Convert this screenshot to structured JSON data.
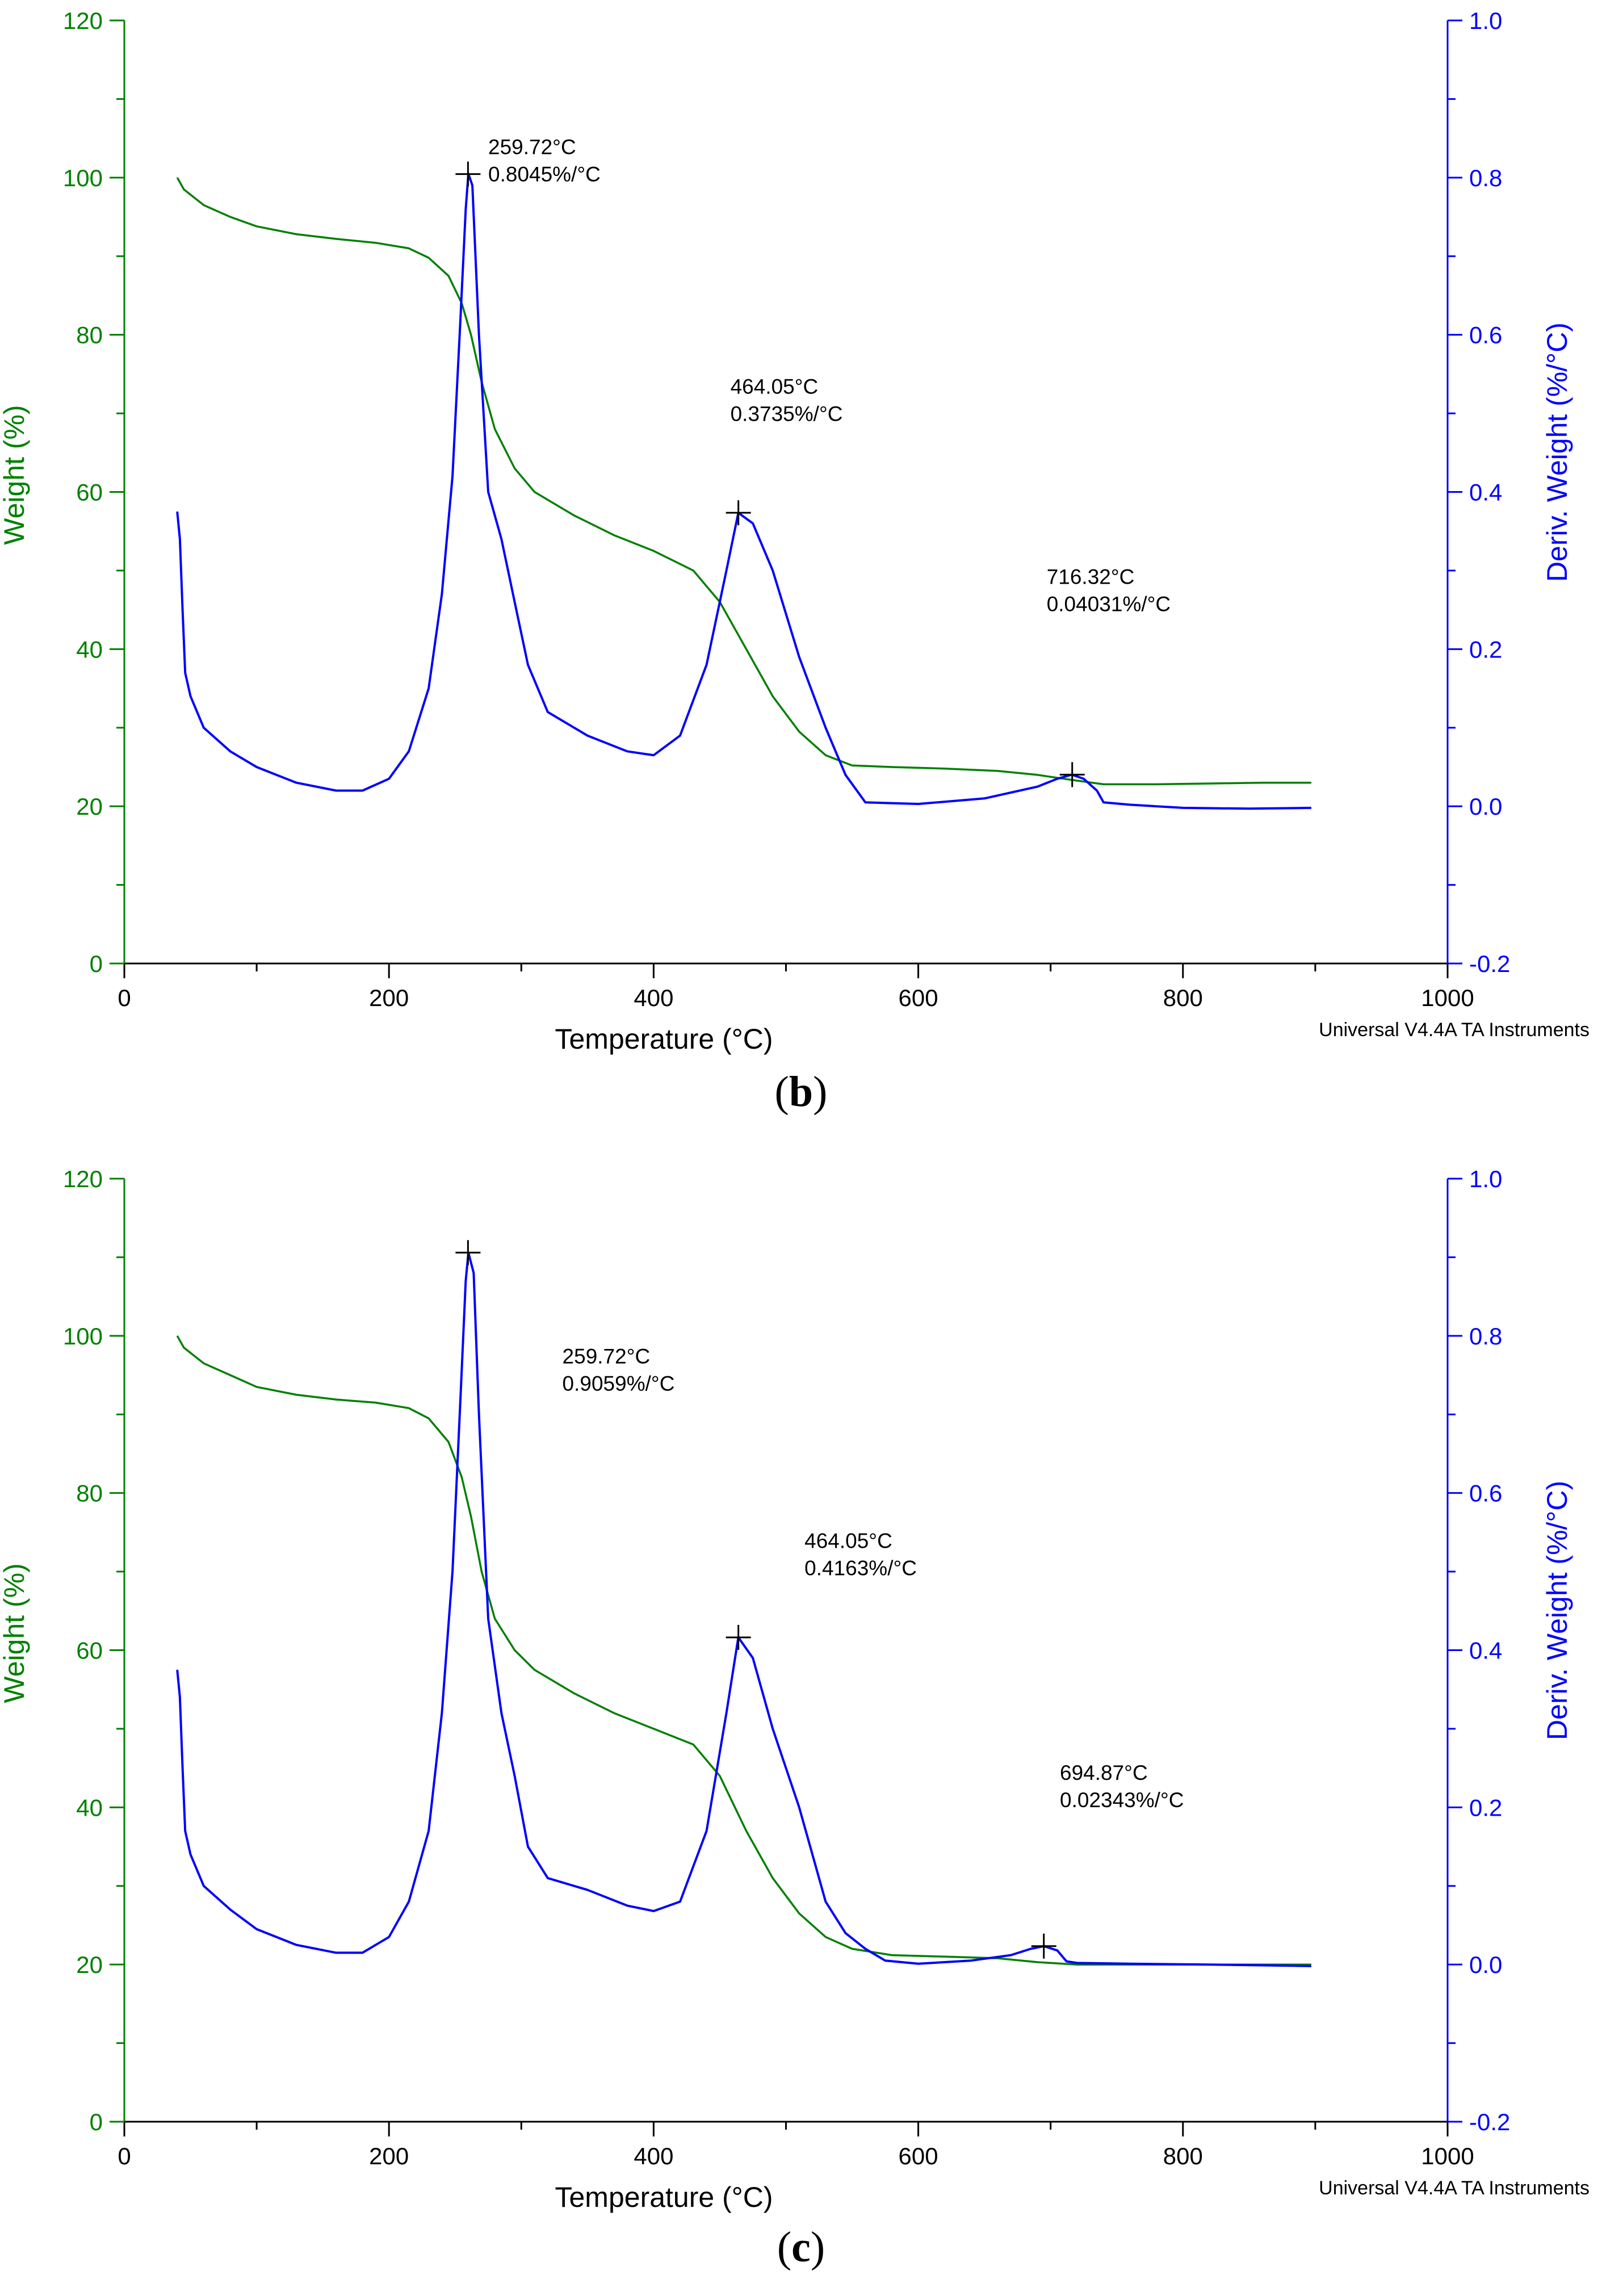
{
  "colors": {
    "weight": "#008000",
    "deriv": "#0000ff",
    "axis_text": "#000000"
  },
  "chart_data": [
    {
      "type": "line",
      "caption": "b",
      "xlabel": "Temperature (°C)",
      "ylabel": "Weight (%)",
      "y2label": "Deriv. Weight (%/°C)",
      "footer": "Universal V4.4A TA Instruments",
      "xlim": [
        0,
        1000
      ],
      "ylim": [
        0,
        120
      ],
      "y2lim": [
        -0.2,
        1.0
      ],
      "xticks": [
        "0",
        "200",
        "400",
        "600",
        "800",
        "1000"
      ],
      "yticks": [
        "0",
        "20",
        "40",
        "60",
        "80",
        "100",
        "120"
      ],
      "y2ticks": [
        "-0.2",
        "0.0",
        "0.2",
        "0.4",
        "0.6",
        "0.8",
        "1.0"
      ],
      "series": [
        {
          "axis": "left",
          "points": [
            [
              40,
              100
            ],
            [
              45,
              98.5
            ],
            [
              60,
              96.5
            ],
            [
              80,
              95
            ],
            [
              100,
              93.8
            ],
            [
              130,
              92.8
            ],
            [
              160,
              92.2
            ],
            [
              190,
              91.7
            ],
            [
              215,
              91
            ],
            [
              230,
              89.8
            ],
            [
              245,
              87.5
            ],
            [
              255,
              84
            ],
            [
              262,
              80
            ],
            [
              270,
              74
            ],
            [
              280,
              68
            ],
            [
              295,
              63
            ],
            [
              310,
              60
            ],
            [
              340,
              57
            ],
            [
              370,
              54.5
            ],
            [
              400,
              52.5
            ],
            [
              430,
              50
            ],
            [
              450,
              46
            ],
            [
              470,
              40
            ],
            [
              490,
              34
            ],
            [
              510,
              29.5
            ],
            [
              530,
              26.5
            ],
            [
              550,
              25.2
            ],
            [
              580,
              25
            ],
            [
              620,
              24.8
            ],
            [
              660,
              24.5
            ],
            [
              690,
              24
            ],
            [
              710,
              23.5
            ],
            [
              740,
              22.8
            ],
            [
              780,
              22.8
            ],
            [
              820,
              22.9
            ],
            [
              860,
              23
            ],
            [
              897,
              23
            ]
          ]
        },
        {
          "axis": "right",
          "points": [
            [
              40,
              0.375
            ],
            [
              42,
              0.34
            ],
            [
              44,
              0.25
            ],
            [
              46,
              0.17
            ],
            [
              50,
              0.14
            ],
            [
              60,
              0.1
            ],
            [
              80,
              0.07
            ],
            [
              100,
              0.05
            ],
            [
              130,
              0.03
            ],
            [
              160,
              0.02
            ],
            [
              180,
              0.02
            ],
            [
              200,
              0.035
            ],
            [
              215,
              0.07
            ],
            [
              230,
              0.15
            ],
            [
              240,
              0.27
            ],
            [
              248,
              0.42
            ],
            [
              254,
              0.62
            ],
            [
              258,
              0.76
            ],
            [
              260,
              0.805
            ],
            [
              263,
              0.79
            ],
            [
              268,
              0.6
            ],
            [
              275,
              0.4
            ],
            [
              285,
              0.34
            ],
            [
              295,
              0.26
            ],
            [
              305,
              0.18
            ],
            [
              320,
              0.12
            ],
            [
              350,
              0.09
            ],
            [
              380,
              0.07
            ],
            [
              400,
              0.065
            ],
            [
              420,
              0.09
            ],
            [
              440,
              0.18
            ],
            [
              455,
              0.3
            ],
            [
              464,
              0.3735
            ],
            [
              475,
              0.36
            ],
            [
              490,
              0.3
            ],
            [
              510,
              0.19
            ],
            [
              530,
              0.1
            ],
            [
              545,
              0.04
            ],
            [
              560,
              0.005
            ],
            [
              600,
              0.003
            ],
            [
              650,
              0.01
            ],
            [
              690,
              0.025
            ],
            [
              705,
              0.035
            ],
            [
              716,
              0.0403
            ],
            [
              725,
              0.035
            ],
            [
              735,
              0.02
            ],
            [
              740,
              0.005
            ],
            [
              760,
              0.002
            ],
            [
              800,
              -0.002
            ],
            [
              850,
              -0.003
            ],
            [
              897,
              -0.002
            ]
          ]
        }
      ],
      "annotations": [
        {
          "x": 259.72,
          "y2": 0.8045,
          "label1": "259.72°C",
          "label2": "0.8045%/°C",
          "tx": 275,
          "ty2": 0.83
        },
        {
          "x": 464.05,
          "y2": 0.3735,
          "label1": "464.05°C",
          "label2": "0.3735%/°C",
          "tx": 458,
          "ty2": 0.525
        },
        {
          "x": 716.32,
          "y2": 0.0403,
          "label1": "716.32°C",
          "label2": "0.04031%/°C",
          "tx": 697,
          "ty2": 0.283
        }
      ]
    },
    {
      "type": "line",
      "caption": "c",
      "xlabel": "Temperature (°C)",
      "ylabel": "Weight (%)",
      "y2label": "Deriv. Weight (%/°C)",
      "footer": "Universal V4.4A TA Instruments",
      "xlim": [
        0,
        1000
      ],
      "ylim": [
        0,
        120
      ],
      "y2lim": [
        -0.2,
        1.0
      ],
      "xticks": [
        "0",
        "200",
        "400",
        "600",
        "800",
        "1000"
      ],
      "yticks": [
        "0",
        "20",
        "40",
        "60",
        "80",
        "100",
        "120"
      ],
      "y2ticks": [
        "-0.2",
        "0.0",
        "0.2",
        "0.4",
        "0.6",
        "0.8",
        "1.0"
      ],
      "series": [
        {
          "axis": "left",
          "points": [
            [
              40,
              100
            ],
            [
              45,
              98.5
            ],
            [
              60,
              96.5
            ],
            [
              80,
              95
            ],
            [
              100,
              93.5
            ],
            [
              130,
              92.5
            ],
            [
              160,
              91.9
            ],
            [
              190,
              91.5
            ],
            [
              215,
              90.8
            ],
            [
              230,
              89.5
            ],
            [
              245,
              86.5
            ],
            [
              255,
              82
            ],
            [
              262,
              77
            ],
            [
              270,
              70
            ],
            [
              280,
              64
            ],
            [
              295,
              60
            ],
            [
              310,
              57.5
            ],
            [
              340,
              54.5
            ],
            [
              370,
              52
            ],
            [
              400,
              50
            ],
            [
              430,
              48
            ],
            [
              450,
              44
            ],
            [
              470,
              37
            ],
            [
              490,
              31
            ],
            [
              510,
              26.5
            ],
            [
              530,
              23.5
            ],
            [
              550,
              22
            ],
            [
              580,
              21.2
            ],
            [
              620,
              21
            ],
            [
              660,
              20.8
            ],
            [
              690,
              20.3
            ],
            [
              720,
              20
            ],
            [
              760,
              20
            ],
            [
              820,
              20
            ],
            [
              897,
              20
            ]
          ]
        },
        {
          "axis": "right",
          "points": [
            [
              40,
              0.375
            ],
            [
              42,
              0.34
            ],
            [
              44,
              0.25
            ],
            [
              46,
              0.17
            ],
            [
              50,
              0.14
            ],
            [
              60,
              0.1
            ],
            [
              80,
              0.07
            ],
            [
              100,
              0.045
            ],
            [
              130,
              0.025
            ],
            [
              160,
              0.015
            ],
            [
              180,
              0.015
            ],
            [
              200,
              0.035
            ],
            [
              215,
              0.08
            ],
            [
              230,
              0.17
            ],
            [
              240,
              0.32
            ],
            [
              248,
              0.5
            ],
            [
              254,
              0.72
            ],
            [
              258,
              0.87
            ],
            [
              260,
              0.9059
            ],
            [
              264,
              0.88
            ],
            [
              268,
              0.7
            ],
            [
              275,
              0.44
            ],
            [
              285,
              0.32
            ],
            [
              295,
              0.24
            ],
            [
              305,
              0.15
            ],
            [
              320,
              0.11
            ],
            [
              350,
              0.095
            ],
            [
              380,
              0.075
            ],
            [
              400,
              0.068
            ],
            [
              420,
              0.08
            ],
            [
              440,
              0.17
            ],
            [
              455,
              0.32
            ],
            [
              464,
              0.4163
            ],
            [
              475,
              0.39
            ],
            [
              490,
              0.3
            ],
            [
              510,
              0.2
            ],
            [
              530,
              0.08
            ],
            [
              545,
              0.04
            ],
            [
              560,
              0.02
            ],
            [
              575,
              0.005
            ],
            [
              600,
              0.001
            ],
            [
              640,
              0.005
            ],
            [
              670,
              0.012
            ],
            [
              685,
              0.02
            ],
            [
              695,
              0.0234
            ],
            [
              705,
              0.018
            ],
            [
              712,
              0.004
            ],
            [
              720,
              0.002
            ],
            [
              760,
              0.001
            ],
            [
              820,
              0
            ],
            [
              897,
              -0.002
            ]
          ]
        }
      ],
      "annotations": [
        {
          "x": 259.72,
          "y2": 0.9059,
          "label1": "259.72°C",
          "label2": "0.9059%/°C",
          "tx": 331,
          "ty2": 0.765
        },
        {
          "x": 464.05,
          "y2": 0.4163,
          "label1": "464.05°C",
          "label2": "0.4163%/°C",
          "tx": 514,
          "ty2": 0.53
        },
        {
          "x": 694.87,
          "y2": 0.0234,
          "label1": "694.87°C",
          "label2": "0.02343%/°C",
          "tx": 707,
          "ty2": 0.235
        }
      ]
    }
  ]
}
